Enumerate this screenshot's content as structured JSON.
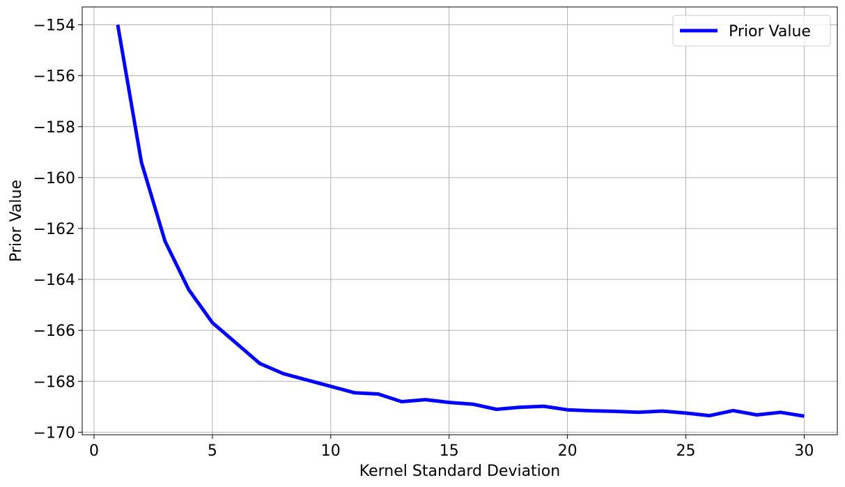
{
  "chart_data": {
    "type": "line",
    "title": "",
    "xlabel": "Kernel Standard Deviation",
    "ylabel": "Prior Value",
    "xlim": [
      -0.5,
      31.4
    ],
    "ylim": [
      -170.1,
      -153.3
    ],
    "xticks": [
      0,
      5,
      10,
      15,
      20,
      25,
      30
    ],
    "yticks": [
      -154,
      -156,
      -158,
      -160,
      -162,
      -164,
      -166,
      -168,
      -170
    ],
    "xtick_labels": [
      "0",
      "5",
      "10",
      "15",
      "20",
      "25",
      "30"
    ],
    "ytick_labels": [
      "−154",
      "−156",
      "−158",
      "−160",
      "−162",
      "−164",
      "−166",
      "−168",
      "−170"
    ],
    "grid": true,
    "legend_position": "top-right",
    "series": [
      {
        "name": "Prior Value",
        "color": "#0000ff",
        "x": [
          1,
          2,
          3,
          4,
          5,
          6,
          7,
          8,
          9,
          10,
          11,
          12,
          13,
          14,
          15,
          16,
          17,
          18,
          19,
          20,
          21,
          22,
          23,
          24,
          25,
          26,
          27,
          28,
          29,
          30
        ],
        "y": [
          -154.0,
          -159.4,
          -162.5,
          -164.4,
          -165.7,
          -166.5,
          -167.3,
          -167.7,
          -167.95,
          -168.2,
          -168.45,
          -168.5,
          -168.8,
          -168.72,
          -168.83,
          -168.9,
          -169.1,
          -169.02,
          -168.98,
          -169.12,
          -169.16,
          -169.18,
          -169.22,
          -169.17,
          -169.25,
          -169.35,
          -169.15,
          -169.32,
          -169.22,
          -169.37
        ]
      }
    ]
  }
}
